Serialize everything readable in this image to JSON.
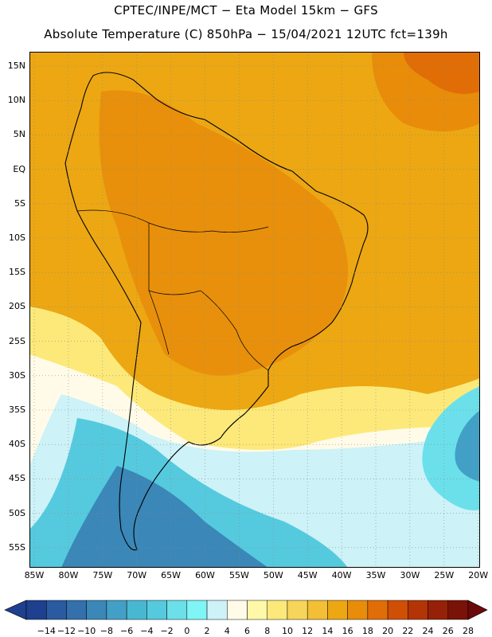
{
  "title": {
    "line1": "CPTEC/INPE/MCT −  Eta Model 15km − GFS",
    "line2": "Absolute Temperature (C) 850hPa − 15/04/2021 12UTC fct=139h"
  },
  "map": {
    "lat_labels": [
      "15N",
      "10N",
      "5N",
      "EQ",
      "5S",
      "10S",
      "15S",
      "20S",
      "25S",
      "30S",
      "35S",
      "40S",
      "45S",
      "50S",
      "55S"
    ],
    "lon_labels": [
      "85W",
      "80W",
      "75W",
      "70W",
      "65W",
      "60W",
      "55W",
      "50W",
      "45W",
      "40W",
      "35W",
      "30W",
      "25W",
      "20W"
    ]
  },
  "colorbar": {
    "labels": [
      "-14",
      "-12",
      "-10",
      "-8",
      "-6",
      "-4",
      "-2",
      "0",
      "2",
      "4",
      "6",
      "8",
      "10",
      "12",
      "14",
      "16",
      "18",
      "20",
      "22",
      "24",
      "26",
      "28"
    ],
    "colors": [
      "#1f3f8f",
      "#2a5a9f",
      "#3370ac",
      "#3a87b8",
      "#42a0c6",
      "#48b7d2",
      "#55cade",
      "#6be0ea",
      "#7ff5f5",
      "#cdf2f8",
      "#fffbe8",
      "#fff8a8",
      "#fce97a",
      "#f6d55a",
      "#f2bf35",
      "#eca713",
      "#e88c0a",
      "#e06d05",
      "#cf4f05",
      "#b33505",
      "#962108",
      "#7a1208"
    ]
  }
}
